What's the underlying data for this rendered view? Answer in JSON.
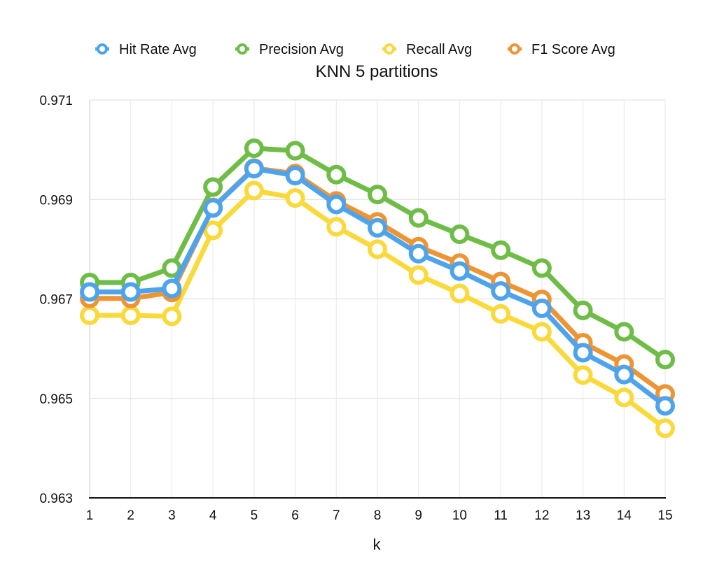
{
  "chart_data": {
    "type": "line",
    "title": "KNN 5 partitions",
    "xlabel": "k",
    "ylabel": "",
    "x": [
      1,
      2,
      3,
      4,
      5,
      6,
      7,
      8,
      9,
      10,
      11,
      12,
      13,
      14,
      15
    ],
    "ylim": [
      0.963,
      0.971
    ],
    "yticks": [
      "0.963",
      "0.965",
      "0.967",
      "0.969",
      "0.971"
    ],
    "grid": true,
    "legend_position": "top",
    "series": [
      {
        "name": "Hit Rate Avg",
        "color": "#4ea4ec",
        "values": [
          0.96714,
          0.96714,
          0.96721,
          0.96883,
          0.96962,
          0.96948,
          0.9689,
          0.96843,
          0.96791,
          0.96756,
          0.96716,
          0.96681,
          0.96592,
          0.96548,
          0.96485
        ]
      },
      {
        "name": "Precision Avg",
        "color": "#6dbd46",
        "values": [
          0.96733,
          0.96733,
          0.96762,
          0.96925,
          0.97003,
          0.96998,
          0.9695,
          0.9691,
          0.96863,
          0.9683,
          0.96798,
          0.96762,
          0.96677,
          0.96634,
          0.96578
        ]
      },
      {
        "name": "Recall Avg",
        "color": "#fad93b",
        "values": [
          0.96667,
          0.96667,
          0.96665,
          0.96838,
          0.96918,
          0.96903,
          0.96845,
          0.968,
          0.96748,
          0.96711,
          0.9667,
          0.96634,
          0.96547,
          0.96502,
          0.9644
        ]
      },
      {
        "name": "F1 Score Avg",
        "color": "#ed9535",
        "values": [
          0.96701,
          0.96701,
          0.96713,
          0.96884,
          0.96963,
          0.96952,
          0.96897,
          0.96855,
          0.96805,
          0.96772,
          0.96735,
          0.96699,
          0.96612,
          0.96569,
          0.96509
        ]
      }
    ]
  }
}
